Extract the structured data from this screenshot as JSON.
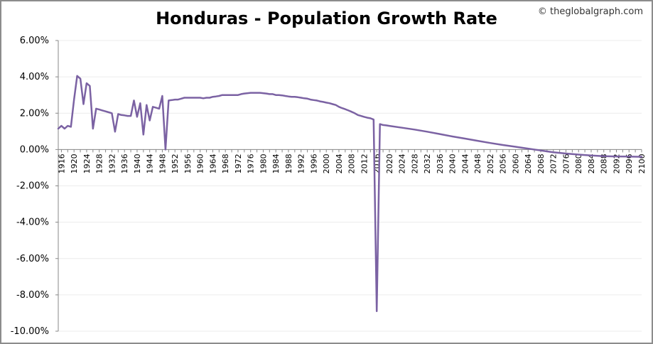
{
  "copyright": "© theglobalgraph.com",
  "chart_data": {
    "type": "line",
    "title": "Honduras - Population Growth Rate",
    "xlabel": "",
    "ylabel": "",
    "xlim": [
      1915,
      2100
    ],
    "ylim": [
      -10,
      6
    ],
    "grid": true,
    "legend": "none",
    "y_ticks": [
      "6.00%",
      "4.00%",
      "2.00%",
      "0.00%",
      "-2.00%",
      "-4.00%",
      "-6.00%",
      "-8.00%",
      "-10.00%"
    ],
    "y_tick_values": [
      6,
      4,
      2,
      0,
      -2,
      -4,
      -6,
      -8,
      -10
    ],
    "x_ticks": [
      "1916",
      "1920",
      "1924",
      "1928",
      "1932",
      "1936",
      "1940",
      "1944",
      "1948",
      "1952",
      "1956",
      "1960",
      "1964",
      "1968",
      "1972",
      "1976",
      "1980",
      "1984",
      "1988",
      "1992",
      "1996",
      "2000",
      "2004",
      "2008",
      "2012",
      "2016",
      "2020",
      "2024",
      "2028",
      "2032",
      "2036",
      "2040",
      "2044",
      "2048",
      "2052",
      "2056",
      "2060",
      "2064",
      "2068",
      "2072",
      "2076",
      "2080",
      "2084",
      "2088",
      "2092",
      "2096",
      "2100"
    ],
    "line_color": "#7b62a3",
    "series": [
      {
        "name": "",
        "x": [
          1915,
          1916,
          1917,
          1918,
          1919,
          1920,
          1921,
          1922,
          1923,
          1924,
          1925,
          1926,
          1927,
          1928,
          1929,
          1930,
          1931,
          1932,
          1933,
          1934,
          1935,
          1936,
          1937,
          1938,
          1939,
          1940,
          1941,
          1942,
          1943,
          1944,
          1945,
          1946,
          1947,
          1948,
          1949,
          1950,
          1951,
          1952,
          1953,
          1954,
          1955,
          1956,
          1957,
          1958,
          1959,
          1960,
          1961,
          1962,
          1963,
          1964,
          1965,
          1966,
          1967,
          1968,
          1969,
          1970,
          1971,
          1972,
          1973,
          1974,
          1975,
          1976,
          1977,
          1978,
          1979,
          1980,
          1981,
          1982,
          1983,
          1984,
          1985,
          1986,
          1987,
          1988,
          1989,
          1990,
          1991,
          1992,
          1993,
          1994,
          1995,
          1996,
          1997,
          1998,
          1999,
          2000,
          2001,
          2002,
          2003,
          2004,
          2005,
          2006,
          2007,
          2008,
          2009,
          2010,
          2011,
          2012,
          2013,
          2014,
          2015,
          2016,
          2017,
          2018,
          2019,
          2020,
          2024,
          2028,
          2032,
          2036,
          2040,
          2044,
          2048,
          2052,
          2056,
          2060,
          2064,
          2068,
          2072,
          2076,
          2080,
          2084,
          2088,
          2092,
          2096,
          2100
        ],
        "y": [
          1.15,
          1.3,
          1.15,
          1.3,
          1.25,
          2.75,
          4.05,
          3.9,
          2.5,
          3.65,
          3.5,
          1.15,
          2.25,
          2.2,
          2.15,
          2.1,
          2.05,
          2.0,
          0.98,
          1.95,
          1.9,
          1.88,
          1.85,
          1.85,
          2.7,
          1.8,
          2.55,
          0.82,
          2.45,
          1.6,
          2.35,
          2.3,
          2.25,
          2.95,
          0.0,
          2.7,
          2.72,
          2.75,
          2.75,
          2.8,
          2.85,
          2.85,
          2.85,
          2.85,
          2.85,
          2.85,
          2.82,
          2.85,
          2.85,
          2.9,
          2.92,
          2.95,
          3.0,
          3.0,
          3.0,
          3.0,
          3.0,
          3.0,
          3.05,
          3.08,
          3.1,
          3.12,
          3.12,
          3.12,
          3.12,
          3.1,
          3.08,
          3.05,
          3.05,
          3.0,
          3.0,
          2.98,
          2.95,
          2.92,
          2.9,
          2.9,
          2.88,
          2.85,
          2.82,
          2.8,
          2.75,
          2.72,
          2.7,
          2.65,
          2.62,
          2.58,
          2.55,
          2.5,
          2.45,
          2.35,
          2.28,
          2.22,
          2.15,
          2.08,
          2.0,
          1.9,
          1.85,
          1.8,
          1.75,
          1.72,
          1.65,
          -8.9,
          1.4,
          1.35,
          1.33,
          1.3,
          1.2,
          1.1,
          0.98,
          0.85,
          0.72,
          0.6,
          0.48,
          0.36,
          0.25,
          0.15,
          0.05,
          -0.05,
          -0.15,
          -0.22,
          -0.28,
          -0.33,
          -0.37,
          -0.38,
          -0.39,
          -0.4
        ]
      }
    ]
  }
}
